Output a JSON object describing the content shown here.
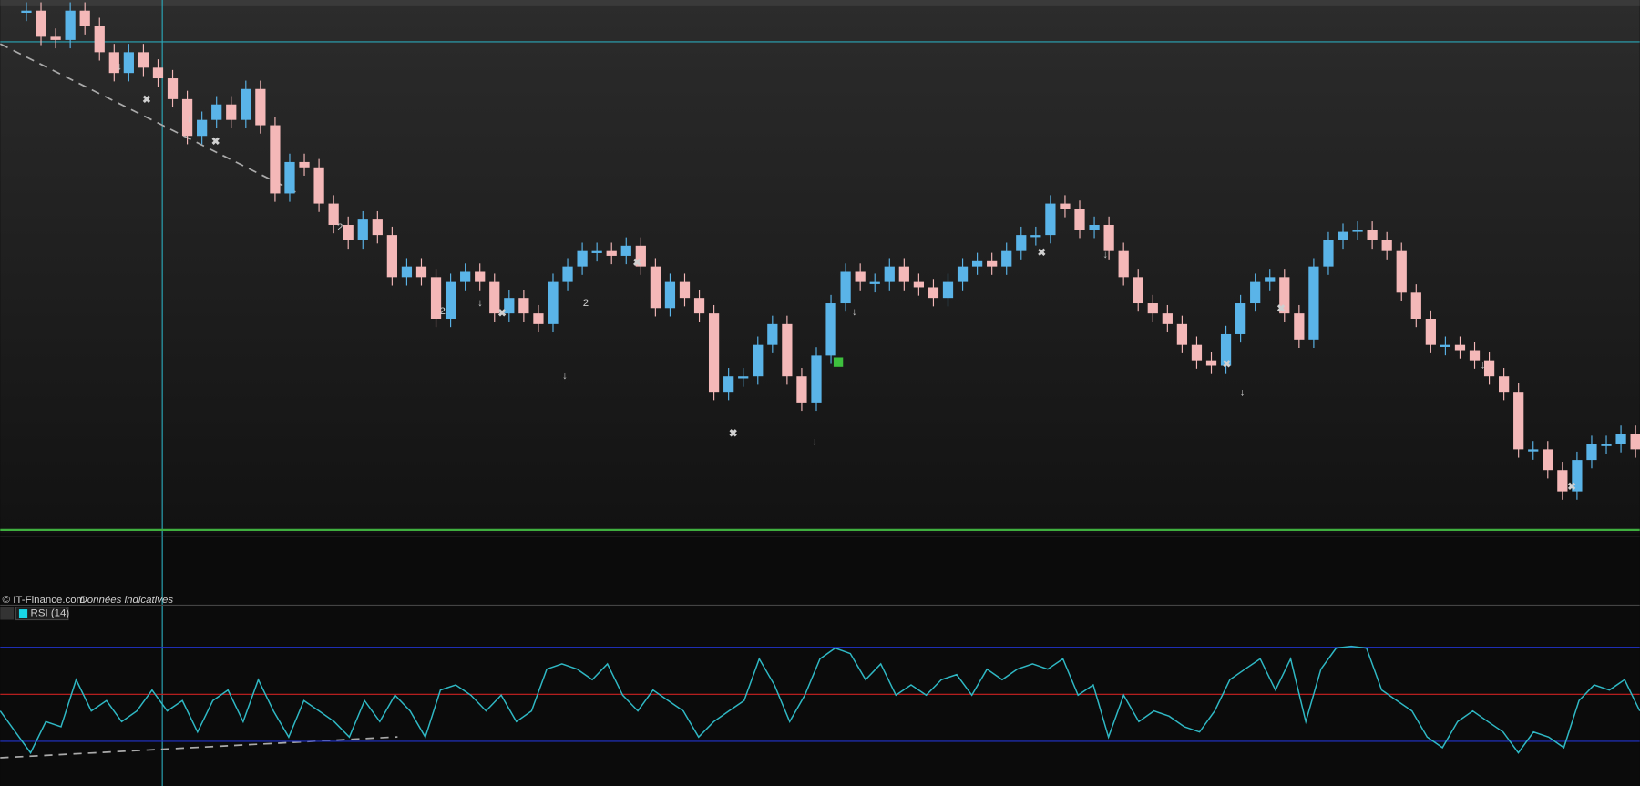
{
  "chart_data": [
    {
      "type": "candle",
      "source": "© IT-Finance.com",
      "note": "Données indicatives",
      "up_color": "#5ab4e8",
      "down_color": "#f4b8b8",
      "ylim": [
        0,
        100
      ],
      "annotations": [
        "2",
        "2",
        "2"
      ],
      "values": [
        98.0,
        93.1,
        92.5,
        98.0,
        95.1,
        90.2,
        86.3,
        90.2,
        87.3,
        85.3,
        81.4,
        74.5,
        77.5,
        80.4,
        77.5,
        83.3,
        76.5,
        63.7,
        69.6,
        68.6,
        61.8,
        57.8,
        54.9,
        58.8,
        55.9,
        48.0,
        50.0,
        48.0,
        40.2,
        47.1,
        49.0,
        47.1,
        41.2,
        44.1,
        41.2,
        39.2,
        47.1,
        50.0,
        52.9,
        52.9,
        52.0,
        53.9,
        50.0,
        42.2,
        47.1,
        44.1,
        41.2,
        26.5,
        29.4,
        29.4,
        35.3,
        39.2,
        29.4,
        24.5,
        33.3,
        43.1,
        49.0,
        47.1,
        47.1,
        50.0,
        47.1,
        46.1,
        44.1,
        47.1,
        50.0,
        51.0,
        50.0,
        52.9,
        55.9,
        55.9,
        61.8,
        60.8,
        56.9,
        57.8,
        52.9,
        48.0,
        43.1,
        41.2,
        39.2,
        35.3,
        32.4,
        31.4,
        37.3,
        43.1,
        47.1,
        48.0,
        41.2,
        36.3,
        50.0,
        54.9,
        56.5,
        56.9,
        54.9,
        52.9,
        45.1,
        40.2,
        35.3,
        35.3,
        34.3,
        32.4,
        29.4,
        26.5,
        15.7,
        15.7,
        11.8,
        7.8,
        13.7,
        16.7,
        16.7,
        18.6,
        15.7
      ]
    },
    {
      "type": "line",
      "title": "RSI (14)",
      "color": "#2fb8c4",
      "ylim": [
        11,
        83
      ],
      "hlines": [
        {
          "value": 70,
          "color": "#2233cc"
        },
        {
          "value": 50,
          "color": "#cc2222"
        },
        {
          "value": 30,
          "color": "#2233cc"
        }
      ],
      "values": [
        42.9,
        34.0,
        25.1,
        38.4,
        36.2,
        56.2,
        42.9,
        47.3,
        38.4,
        42.9,
        51.8,
        42.9,
        47.3,
        34.0,
        47.3,
        51.8,
        38.4,
        56.2,
        42.9,
        31.8,
        47.3,
        42.9,
        38.4,
        31.8,
        47.3,
        38.4,
        49.6,
        42.9,
        31.8,
        51.8,
        54.0,
        49.6,
        42.9,
        49.6,
        38.4,
        42.9,
        60.7,
        62.9,
        60.7,
        56.2,
        62.9,
        49.6,
        42.9,
        51.8,
        47.3,
        42.9,
        31.8,
        38.4,
        42.9,
        47.3,
        65.1,
        54.0,
        38.4,
        49.6,
        65.1,
        69.6,
        67.3,
        56.2,
        62.9,
        49.6,
        54.0,
        49.6,
        56.2,
        58.4,
        49.6,
        60.7,
        56.2,
        60.7,
        62.9,
        60.7,
        65.1,
        49.6,
        54.0,
        31.8,
        49.6,
        38.4,
        42.9,
        40.7,
        36.2,
        34.0,
        42.9,
        56.2,
        60.7,
        65.1,
        51.8,
        65.1,
        38.4,
        60.7,
        69.6,
        70.4,
        69.6,
        51.8,
        47.3,
        42.9,
        31.8,
        27.3,
        38.4,
        42.9,
        38.4,
        34.0,
        25.1,
        34.0,
        31.8,
        27.3,
        47.3,
        54.0,
        51.8,
        56.2,
        42.9
      ]
    }
  ]
}
